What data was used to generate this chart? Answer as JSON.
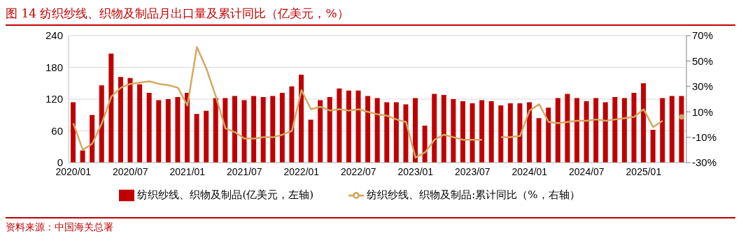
{
  "chart_data": {
    "type": "bar",
    "title": "图 14 纺织纱线、织物及制品月出口量及累计同比（亿美元，%）",
    "annotations": [
      "资料来源：中国海关总署"
    ],
    "categories": [
      "2020/01",
      null,
      null,
      null,
      null,
      null,
      "2020/07",
      null,
      null,
      null,
      null,
      null,
      "2021/01",
      null,
      null,
      null,
      null,
      null,
      "2021/07",
      null,
      null,
      null,
      null,
      null,
      "2022/01",
      null,
      null,
      null,
      null,
      null,
      "2022/07",
      null,
      null,
      null,
      null,
      null,
      "2023/01",
      null,
      null,
      null,
      null,
      null,
      "2023/07",
      null,
      null,
      null,
      null,
      null,
      "2024/01",
      null,
      null,
      null,
      null,
      null,
      "2024/07",
      null,
      null,
      null,
      null,
      null,
      "2025/01",
      null,
      null,
      null,
      null
    ],
    "series": [
      {
        "name": "纺织纱线、织物及制品(亿美元，左轴)",
        "color": "#c00000",
        "values": [
          114,
          23,
          90,
          146,
          206,
          162,
          160,
          148,
          132,
          118,
          120,
          124,
          132,
          92,
          98,
          122,
          122,
          126,
          118,
          126,
          124,
          126,
          132,
          144,
          166,
          81,
          118,
          124,
          140,
          136,
          136,
          126,
          122,
          114,
          114,
          110,
          122,
          70,
          130,
          128,
          120,
          116,
          112,
          118,
          116,
          108,
          112,
          112,
          114,
          84,
          104,
          122,
          130,
          122,
          116,
          122,
          114,
          124,
          122,
          132,
          150,
          62,
          122,
          126,
          126
        ]
      },
      {
        "name": "纺织纱线、织物及制品:累计同比（%，右轴）",
        "type": "line",
        "axis": "y2",
        "color": "#d4a862",
        "values": [
          1,
          -20,
          -15,
          1,
          22,
          29,
          32,
          33,
          34,
          32,
          31,
          29,
          15,
          61,
          44,
          22,
          -3,
          -6,
          -11,
          -11,
          -10,
          -10,
          -8,
          -5,
          27,
          12,
          14,
          11,
          12,
          11,
          12,
          10,
          8,
          7,
          4,
          2,
          -26,
          -22,
          -12,
          -8,
          -10,
          -12,
          -12,
          -12,
          null,
          -10,
          -10,
          -9,
          11,
          16,
          2,
          1,
          2,
          3,
          3,
          4,
          3,
          4,
          5,
          6,
          12,
          -2,
          3,
          null,
          6
        ]
      }
    ],
    "ylim": [
      0,
      240
    ],
    "yticks": [
      0,
      60,
      120,
      180,
      240
    ],
    "y2lim": [
      -30,
      70
    ],
    "y2ticks": [
      {
        "value": -30,
        "label": "-30%"
      },
      {
        "value": -10,
        "label": "-10%"
      },
      {
        "value": 10,
        "label": "10%"
      },
      {
        "value": 30,
        "label": "30%"
      },
      {
        "value": 50,
        "label": "50%"
      },
      {
        "value": 70,
        "label": "70%"
      }
    ],
    "grid": "y",
    "legend": "bottom",
    "marker": "none",
    "line_style": "solid"
  }
}
